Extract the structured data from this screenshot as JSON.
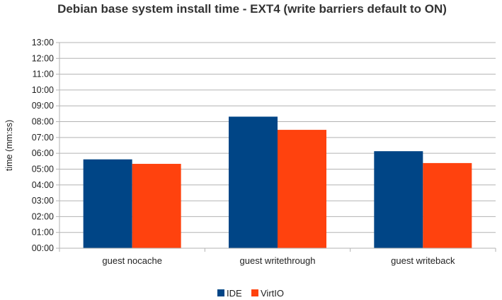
{
  "chart_data": {
    "type": "bar",
    "title": "Debian base system install time - EXT4 (write barriers default to ON)",
    "xlabel": "",
    "ylabel": "time (mm:ss)",
    "categories": [
      "guest nocache",
      "guest writethrough",
      "guest writeback"
    ],
    "series": [
      {
        "name": "IDE",
        "color": "#004586",
        "values_seconds": [
          337,
          499,
          368
        ]
      },
      {
        "name": "VirtIO",
        "color": "#ff420e",
        "values_seconds": [
          320,
          449,
          323
        ]
      }
    ],
    "yticks": [
      "00:00",
      "01:00",
      "02:00",
      "03:00",
      "04:00",
      "05:00",
      "06:00",
      "07:00",
      "08:00",
      "09:00",
      "10:00",
      "11:00",
      "12:00",
      "13:00"
    ],
    "ylim_seconds": [
      0,
      780
    ],
    "grid": true,
    "legend_position": "bottom"
  }
}
